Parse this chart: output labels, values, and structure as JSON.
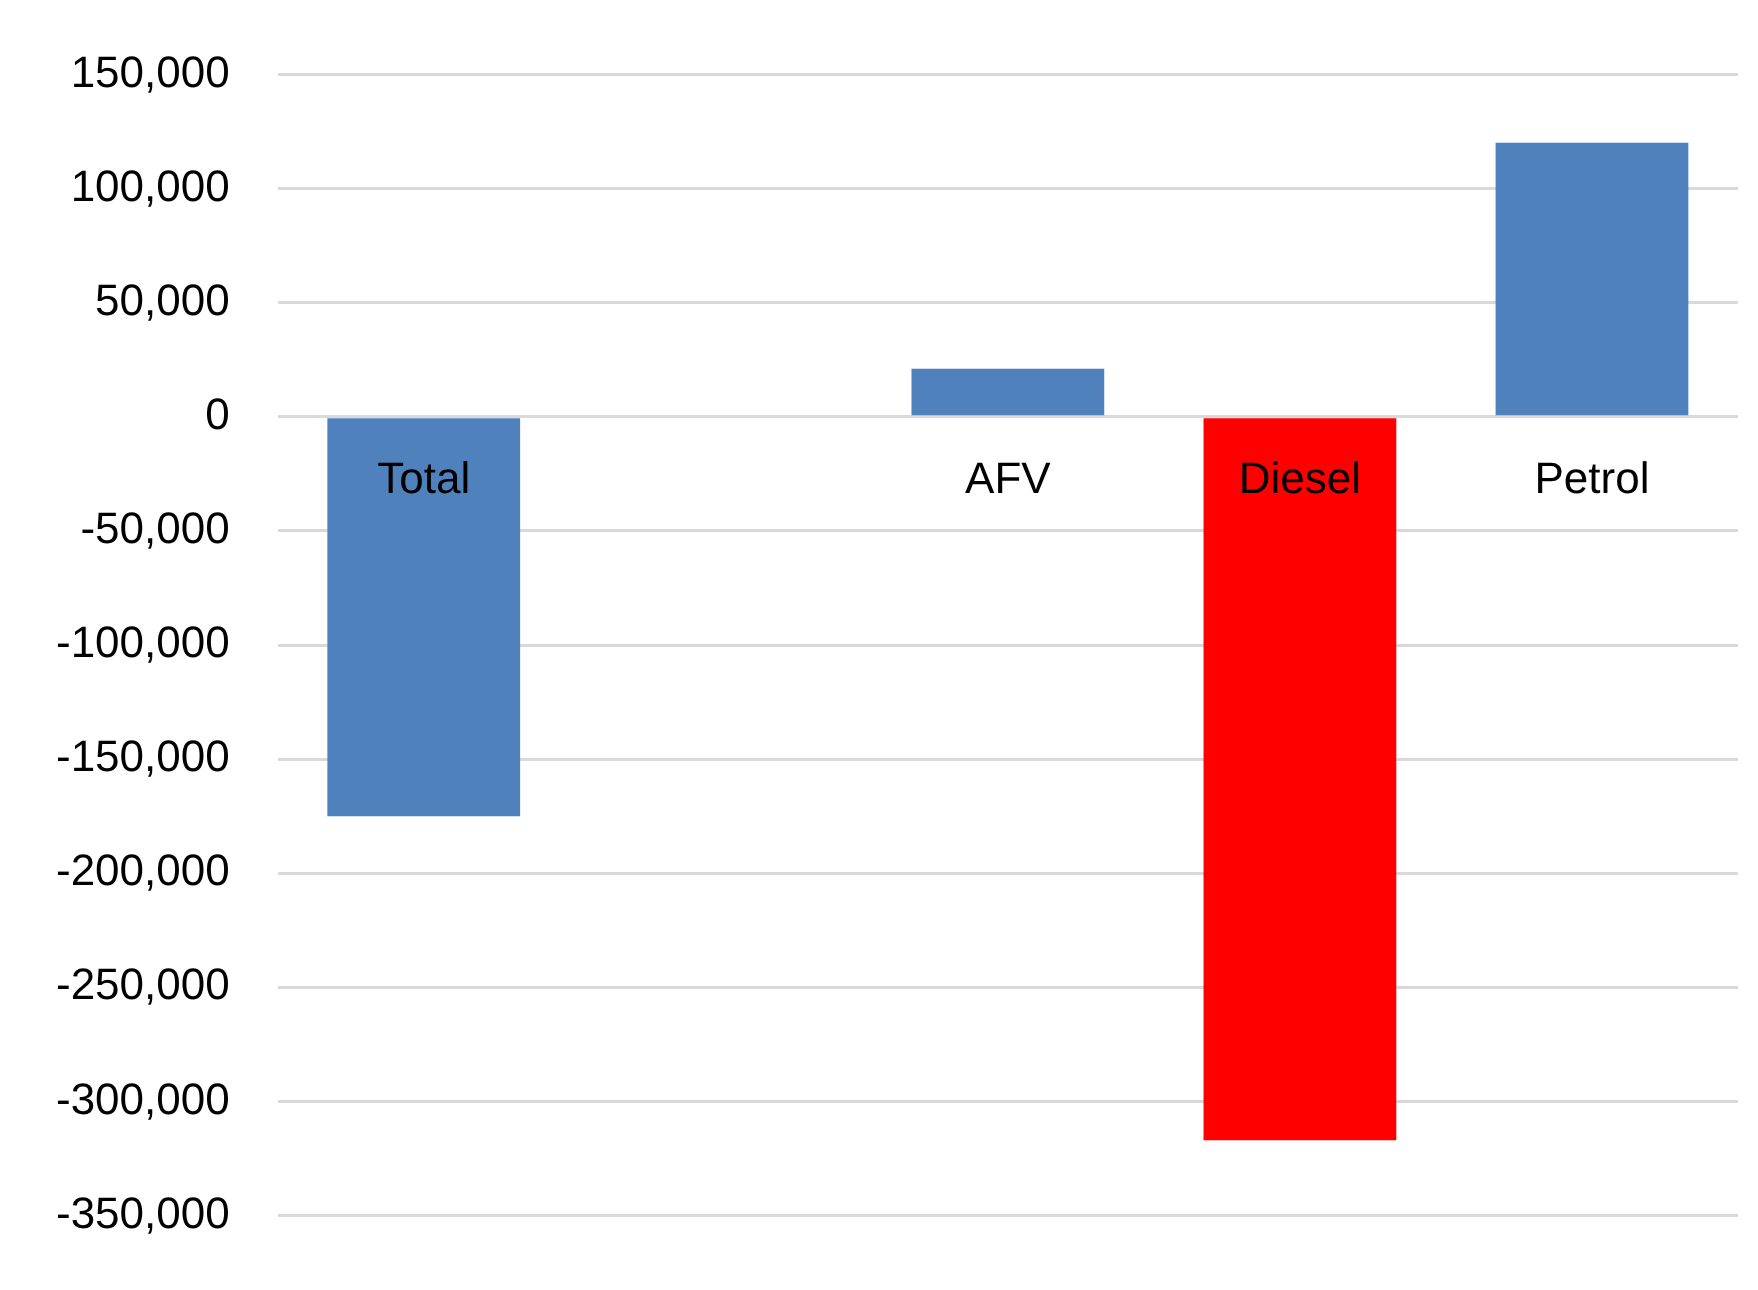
{
  "chart_data": {
    "type": "bar",
    "categories": [
      "Total",
      null,
      "AFV",
      "Diesel",
      "Petrol"
    ],
    "values": [
      -175000,
      null,
      21000,
      -317000,
      120000
    ],
    "colors": [
      "#4f81bd",
      null,
      "#4f81bd",
      "#ff0000",
      "#4f81bd"
    ],
    "ylim": [
      -350000,
      150000
    ],
    "yticks": [
      {
        "value": -350000,
        "label": "-350,000"
      },
      {
        "value": -300000,
        "label": "-300,000"
      },
      {
        "value": -250000,
        "label": "-250,000"
      },
      {
        "value": -200000,
        "label": "-200,000"
      },
      {
        "value": -150000,
        "label": "-150,000"
      },
      {
        "value": -100000,
        "label": "-100,000"
      },
      {
        "value": -50000,
        "label": "-50,000"
      },
      {
        "value": 0,
        "label": "0"
      },
      {
        "value": 50000,
        "label": "50,000"
      },
      {
        "value": 100000,
        "label": "100,000"
      },
      {
        "value": 150000,
        "label": "150,000"
      }
    ],
    "grid": "y"
  }
}
